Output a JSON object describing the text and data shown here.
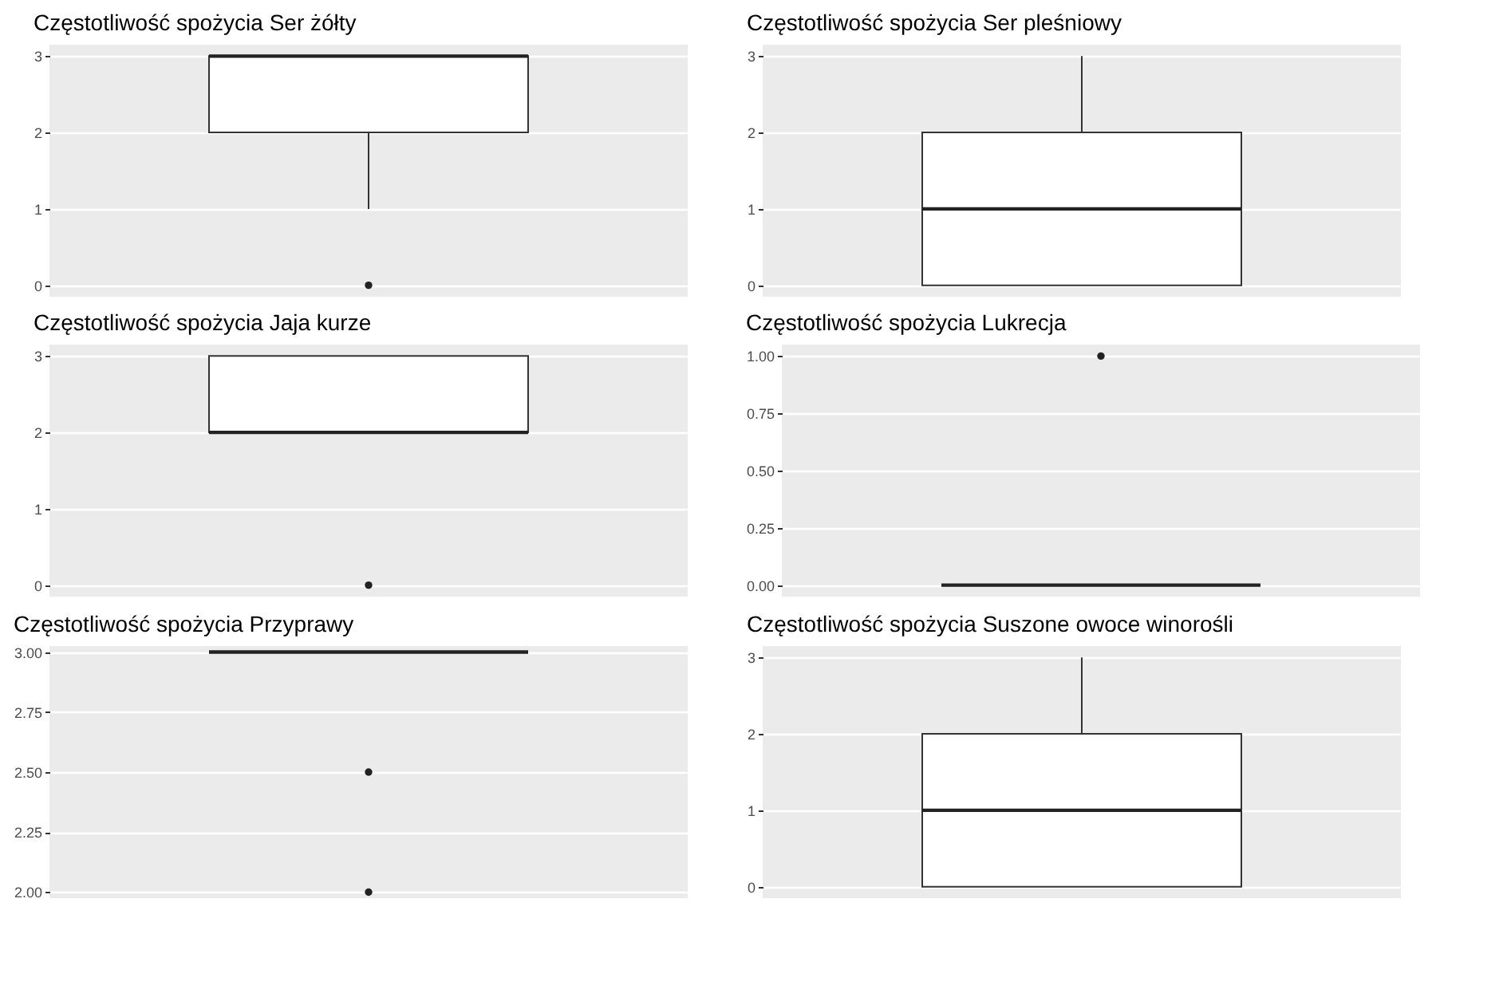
{
  "chart_data": [
    {
      "type": "box",
      "title": "Częstotliwość spożycia Ser żółty",
      "categories": [
        null
      ],
      "boxes": [
        {
          "low": 1,
          "q1": 2,
          "median": 3,
          "q3": 3,
          "high": 3,
          "outliers": [
            0
          ]
        }
      ],
      "ylim": [
        -0.15,
        3.15
      ],
      "yticks": [
        0,
        1,
        2,
        3
      ],
      "grid": "y",
      "tick_labels": "y"
    },
    {
      "type": "box",
      "title": "Częstotliwość spożycia Ser pleśniowy",
      "categories": [
        null
      ],
      "boxes": [
        {
          "low": 0,
          "q1": 0,
          "median": 1,
          "q3": 2,
          "high": 3
        }
      ],
      "ylim": [
        -0.15,
        3.15
      ],
      "yticks": [
        0,
        1,
        2,
        3
      ],
      "grid": "y",
      "tick_labels": "y"
    },
    {
      "type": "box",
      "title": "Częstotliwość spożycia Jaja kurze",
      "categories": [
        null
      ],
      "boxes": [
        {
          "low": 2,
          "q1": 2,
          "median": 2,
          "q3": 3,
          "high": 3,
          "outliers": [
            0
          ]
        }
      ],
      "ylim": [
        -0.15,
        3.15
      ],
      "yticks": [
        0,
        1,
        2,
        3
      ],
      "grid": "y",
      "tick_labels": "y"
    },
    {
      "type": "box",
      "title": "Częstotliwość spożycia Lukrecja",
      "categories": [
        null
      ],
      "boxes": [
        {
          "low": 0,
          "q1": 0,
          "median": 0,
          "q3": 0,
          "high": 0,
          "outliers": [
            1
          ]
        }
      ],
      "ylim": [
        -0.05,
        1.05
      ],
      "yticks": [
        {
          "value": 0,
          "label": "0.00"
        },
        {
          "value": 0.25,
          "label": "0.25"
        },
        {
          "value": 0.5,
          "label": "0.50"
        },
        {
          "value": 0.75,
          "label": "0.75"
        },
        {
          "value": 1,
          "label": "1.00"
        }
      ],
      "grid": "y",
      "tick_labels": "y"
    },
    {
      "type": "box",
      "title": "Częstotliwość spożycia Przyprawy",
      "categories": [
        null
      ],
      "boxes": [
        {
          "low": 3,
          "q1": 3,
          "median": 3,
          "q3": 3,
          "high": 3,
          "outliers": [
            2.5,
            2
          ]
        }
      ],
      "ylim": [
        1.975,
        3.025
      ],
      "yticks": [
        {
          "value": 2,
          "label": "2.00"
        },
        {
          "value": 2.25,
          "label": "2.25"
        },
        {
          "value": 2.5,
          "label": "2.50"
        },
        {
          "value": 2.75,
          "label": "2.75"
        },
        {
          "value": 3,
          "label": "3.00"
        }
      ],
      "grid": "y",
      "tick_labels": "y"
    },
    {
      "type": "box",
      "title": "Częstotliwość spożycia Suszone owoce winorośli",
      "categories": [
        null
      ],
      "boxes": [
        {
          "low": 0,
          "q1": 0,
          "median": 1,
          "q3": 2,
          "high": 3
        }
      ],
      "ylim": [
        -0.15,
        3.15
      ],
      "yticks": [
        0,
        1,
        2,
        3
      ],
      "grid": "y",
      "tick_labels": "y"
    }
  ]
}
